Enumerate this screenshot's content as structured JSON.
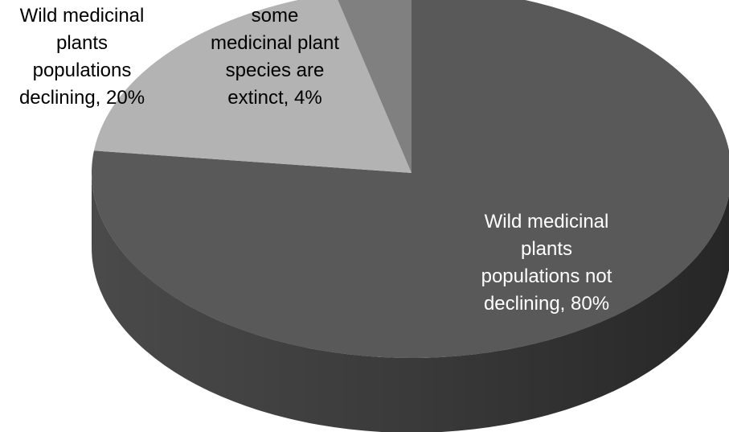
{
  "chart_data": {
    "type": "pie",
    "style": "3d",
    "slices": [
      {
        "label_lines": [
          "Wild medicinal",
          "plants",
          "populations not",
          "declining, 80%"
        ],
        "value": 80,
        "color": "#595959"
      },
      {
        "label_lines": [
          "Wild   medicinal",
          "plants",
          "populations",
          "declining, 20%"
        ],
        "value": 20,
        "color": "#b3b3b3"
      },
      {
        "label_lines": [
          "some",
          "medicinal plant",
          "species  are",
          "extinct, 4%"
        ],
        "value": 4,
        "color": "#808080"
      }
    ]
  }
}
